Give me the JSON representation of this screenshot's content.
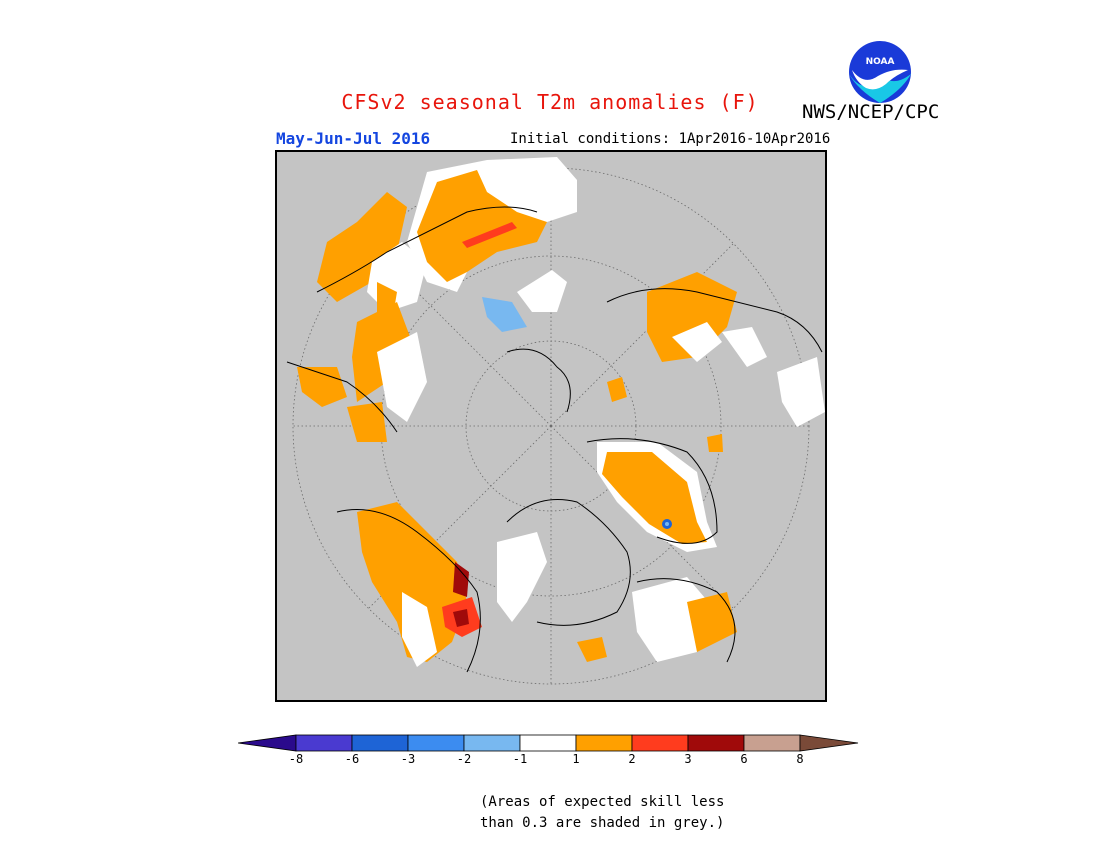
{
  "header": {
    "title": "CFSv2 seasonal T2m anomalies (F)",
    "agency": "NWS/NCEP/CPC",
    "period": "May-Jun-Jul 2016",
    "initial_conditions": "Initial conditions: 1Apr2016-10Apr2016",
    "logo_text": "NOAA"
  },
  "colorbar": {
    "colors": [
      "#2a0a8c",
      "#4a3ad0",
      "#1e64d6",
      "#3c8cf0",
      "#78b8f0",
      "#ffffff",
      "#ffa000",
      "#ff3c1e",
      "#a00a0a",
      "#c8a090",
      "#7a4a38"
    ],
    "tick_labels": [
      "-8",
      "-6",
      "-3",
      "-2",
      "-1",
      "1",
      "2",
      "3",
      "6",
      "8"
    ]
  },
  "map": {
    "background": "#c4c4c4",
    "regions_shown": [
      "Europe",
      "Africa",
      "Asia",
      "North America",
      "Greenland"
    ]
  },
  "footnote": {
    "line1": "(Areas of expected skill less",
    "line2": "than 0.3 are shaded in grey.)"
  }
}
